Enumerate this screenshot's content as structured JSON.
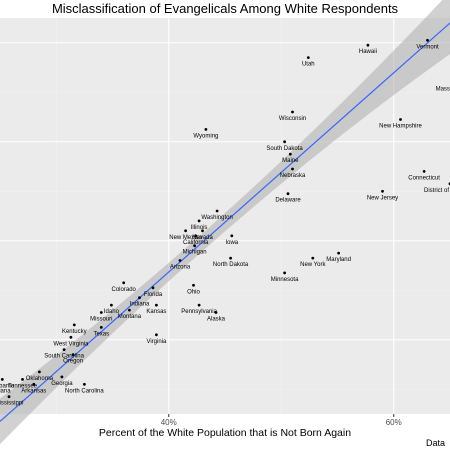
{
  "chart_data": {
    "type": "scatter",
    "title": "Misclassification of Evangelicals Among White Respondents",
    "xlabel": "Percent of the White Population that is Not Born Again",
    "ylabel": "",
    "caption": "Data",
    "x_ticks": [
      "40%",
      "60%"
    ],
    "y_ticks": [],
    "xlim": [
      0.25,
      0.66
    ],
    "grid": true,
    "colors": {
      "panel_background": "#ebebeb",
      "grid_major": "#ffffff",
      "grid_minor": "#f2f2f2",
      "point": "#000000",
      "trend_line": "#3366ff",
      "confidence_band": "#b3b3b3"
    },
    "trend": {
      "method": "linear",
      "confidence_band": true,
      "x_range": [
        0.25,
        0.66
      ],
      "y_range": [
        0.135,
        0.96
      ]
    },
    "points": [
      {
        "label": "Vermont",
        "x": 0.63,
        "y": 0.905
      },
      {
        "label": "Hawaii",
        "x": 0.577,
        "y": 0.895
      },
      {
        "label": "Utah",
        "x": 0.524,
        "y": 0.87
      },
      {
        "label": "Massachusetts",
        "x": 0.655,
        "y": 0.82
      },
      {
        "label": "Wisconsin",
        "x": 0.51,
        "y": 0.76
      },
      {
        "label": "New Hampshire",
        "x": 0.606,
        "y": 0.745
      },
      {
        "label": "Wyoming",
        "x": 0.433,
        "y": 0.725
      },
      {
        "label": "South Dakota",
        "x": 0.503,
        "y": 0.7
      },
      {
        "label": "Maine",
        "x": 0.508,
        "y": 0.675
      },
      {
        "label": "Nebraska",
        "x": 0.51,
        "y": 0.645
      },
      {
        "label": "Connecticut",
        "x": 0.627,
        "y": 0.64
      },
      {
        "label": "District of Columbia",
        "x": 0.65,
        "y": 0.615
      },
      {
        "label": "New Jersey",
        "x": 0.59,
        "y": 0.6
      },
      {
        "label": "Delaware",
        "x": 0.506,
        "y": 0.595
      },
      {
        "label": "Washington",
        "x": 0.443,
        "y": 0.56
      },
      {
        "label": "Illinois",
        "x": 0.427,
        "y": 0.54
      },
      {
        "label": "New Mexico",
        "x": 0.415,
        "y": 0.52
      },
      {
        "label": "Nevada",
        "x": 0.43,
        "y": 0.52
      },
      {
        "label": "Iowa",
        "x": 0.456,
        "y": 0.51
      },
      {
        "label": "California",
        "x": 0.424,
        "y": 0.51
      },
      {
        "label": "Michigan",
        "x": 0.423,
        "y": 0.49
      },
      {
        "label": "North Dakota",
        "x": 0.455,
        "y": 0.465
      },
      {
        "label": "Maryland",
        "x": 0.551,
        "y": 0.475
      },
      {
        "label": "New York",
        "x": 0.528,
        "y": 0.465
      },
      {
        "label": "Arizona",
        "x": 0.41,
        "y": 0.46
      },
      {
        "label": "Minnesota",
        "x": 0.503,
        "y": 0.435
      },
      {
        "label": "Colorado",
        "x": 0.36,
        "y": 0.415
      },
      {
        "label": "Ohio",
        "x": 0.422,
        "y": 0.41
      },
      {
        "label": "Florida",
        "x": 0.386,
        "y": 0.405
      },
      {
        "label": "Indiana",
        "x": 0.374,
        "y": 0.385
      },
      {
        "label": "Idaho",
        "x": 0.349,
        "y": 0.37
      },
      {
        "label": "Kansas",
        "x": 0.389,
        "y": 0.37
      },
      {
        "label": "Pennsylvania",
        "x": 0.427,
        "y": 0.37
      },
      {
        "label": "Montana",
        "x": 0.365,
        "y": 0.36
      },
      {
        "label": "Missouri",
        "x": 0.34,
        "y": 0.355
      },
      {
        "label": "Alaska",
        "x": 0.442,
        "y": 0.355
      },
      {
        "label": "Kentucky",
        "x": 0.316,
        "y": 0.33
      },
      {
        "label": "Texas",
        "x": 0.34,
        "y": 0.325
      },
      {
        "label": "West Virginia",
        "x": 0.313,
        "y": 0.305
      },
      {
        "label": "Virginia",
        "x": 0.389,
        "y": 0.31
      },
      {
        "label": "South Carolina",
        "x": 0.307,
        "y": 0.28
      },
      {
        "label": "Oregon",
        "x": 0.315,
        "y": 0.27
      },
      {
        "label": "Oklahoma",
        "x": 0.285,
        "y": 0.235
      },
      {
        "label": "Alabama",
        "x": 0.252,
        "y": 0.22
      },
      {
        "label": "Tennessee",
        "x": 0.27,
        "y": 0.22
      },
      {
        "label": "Georgia",
        "x": 0.305,
        "y": 0.225
      },
      {
        "label": "Arkansas",
        "x": 0.28,
        "y": 0.21
      },
      {
        "label": "North Carolina",
        "x": 0.325,
        "y": 0.21
      },
      {
        "label": "Louisiana",
        "x": 0.248,
        "y": 0.21
      },
      {
        "label": "Mississippi",
        "x": 0.258,
        "y": 0.185
      }
    ]
  }
}
